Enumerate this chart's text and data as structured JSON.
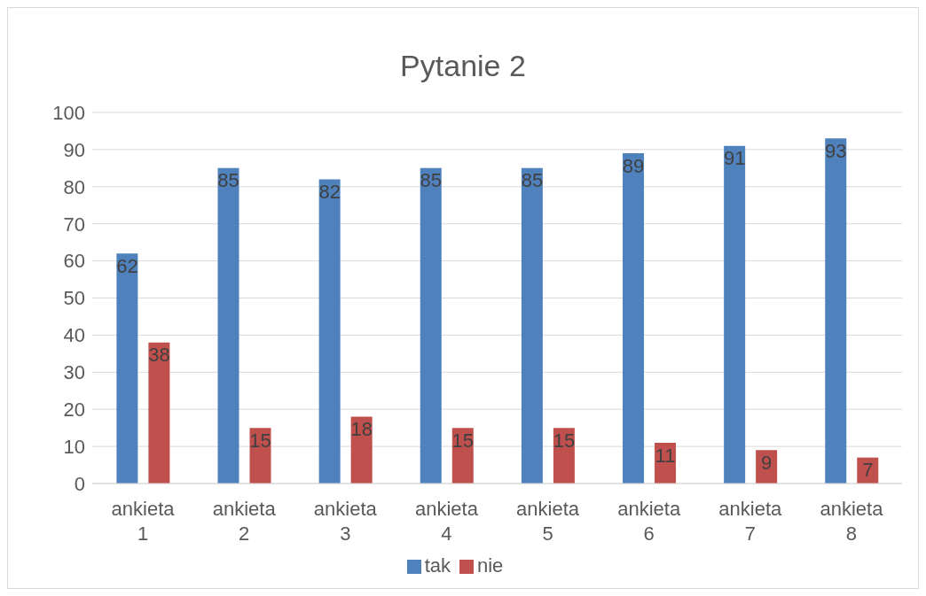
{
  "chart_data": {
    "type": "bar",
    "title": "Pytanie 2",
    "categories": [
      "ankieta 1",
      "ankieta 2",
      "ankieta 3",
      "ankieta 4",
      "ankieta 5",
      "ankieta 6",
      "ankieta 7",
      "ankieta 8"
    ],
    "series": [
      {
        "name": "tak",
        "color": "#4f81bd",
        "values": [
          62,
          85,
          82,
          85,
          85,
          89,
          91,
          93
        ]
      },
      {
        "name": "nie",
        "color": "#c0504d",
        "values": [
          38,
          15,
          18,
          15,
          15,
          11,
          9,
          7
        ]
      }
    ],
    "ylim": [
      0,
      100
    ],
    "yticks": [
      0,
      10,
      20,
      30,
      40,
      50,
      60,
      70,
      80,
      90,
      100
    ],
    "grid": "y",
    "legend": "bottom",
    "data_labels": true
  }
}
